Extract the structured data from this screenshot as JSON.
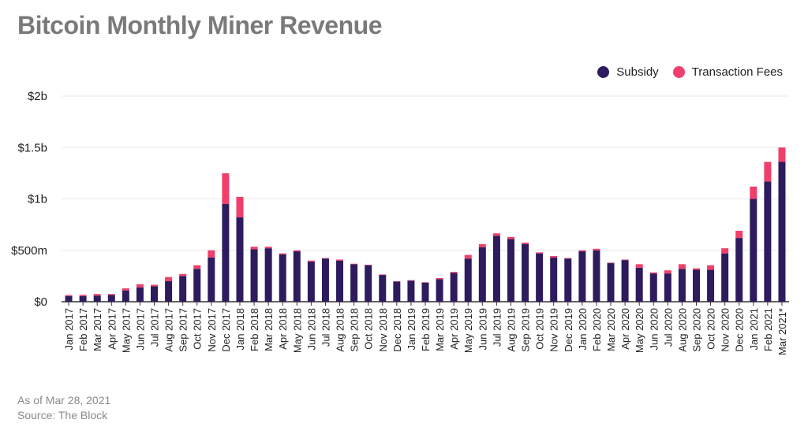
{
  "title": "Bitcoin Monthly Miner Revenue",
  "footer": {
    "as_of": "As of Mar 28, 2021",
    "source": "Source: The Block"
  },
  "colors": {
    "subsidy": "#2d1b5e",
    "fees": "#f03f6b",
    "grid": "#e8e8e8",
    "axis": "#333333"
  },
  "chart_data": {
    "type": "bar",
    "stacked": true,
    "title": "Bitcoin Monthly Miner Revenue",
    "legend_position": "top-right",
    "grid": true,
    "ylim": [
      0,
      2000
    ],
    "y_unit": "millions USD",
    "y_ticks": [
      {
        "value": 0,
        "label": "$0"
      },
      {
        "value": 500,
        "label": "$500m"
      },
      {
        "value": 1000,
        "label": "$1b"
      },
      {
        "value": 1500,
        "label": "$1.5b"
      },
      {
        "value": 2000,
        "label": "$2b"
      }
    ],
    "categories": [
      "Jan 2017",
      "Feb 2017",
      "Mar 2017",
      "Apr 2017",
      "May 2017",
      "Jun 2017",
      "Jul 2017",
      "Aug 2017",
      "Sep 2017",
      "Oct 2017",
      "Nov 2017",
      "Dec 2017",
      "Jan 2018",
      "Feb 2018",
      "Mar 2018",
      "Apr 2018",
      "May 2018",
      "Jun 2018",
      "Jul 2018",
      "Aug 2018",
      "Sep 2018",
      "Oct 2018",
      "Nov 2018",
      "Dec 2018",
      "Jan 2019",
      "Feb 2019",
      "Mar 2019",
      "Apr 2019",
      "May 2019",
      "Jun 2019",
      "Jul 2019",
      "Aug 2019",
      "Sep 2019",
      "Oct 2019",
      "Nov 2019",
      "Dec 2019",
      "Jan 2020",
      "Feb 2020",
      "Mar 2020",
      "Apr 2020",
      "May 2020",
      "Jun 2020",
      "Jul 2020",
      "Aug 2020",
      "Sep 2020",
      "Oct 2020",
      "Nov 2020",
      "Dec 2020",
      "Jan 2021",
      "Feb 2021",
      "Mar 2021*"
    ],
    "series": [
      {
        "name": "Subsidy",
        "color": "#2d1b5e",
        "values": [
          55,
          55,
          60,
          65,
          110,
          140,
          150,
          200,
          250,
          320,
          430,
          950,
          820,
          510,
          520,
          460,
          490,
          390,
          420,
          400,
          365,
          355,
          260,
          195,
          205,
          185,
          220,
          280,
          420,
          530,
          640,
          610,
          560,
          470,
          430,
          420,
          490,
          500,
          375,
          405,
          330,
          275,
          275,
          320,
          310,
          310,
          470,
          620,
          1000,
          1170,
          1360
        ]
      },
      {
        "name": "Transaction Fees",
        "color": "#f03f6b",
        "values": [
          10,
          12,
          15,
          10,
          20,
          30,
          15,
          40,
          20,
          35,
          70,
          300,
          200,
          25,
          15,
          10,
          10,
          10,
          5,
          10,
          5,
          5,
          5,
          5,
          5,
          5,
          10,
          10,
          35,
          30,
          25,
          20,
          15,
          10,
          15,
          5,
          10,
          15,
          5,
          5,
          35,
          10,
          30,
          45,
          15,
          45,
          50,
          70,
          120,
          190,
          140
        ]
      }
    ]
  }
}
